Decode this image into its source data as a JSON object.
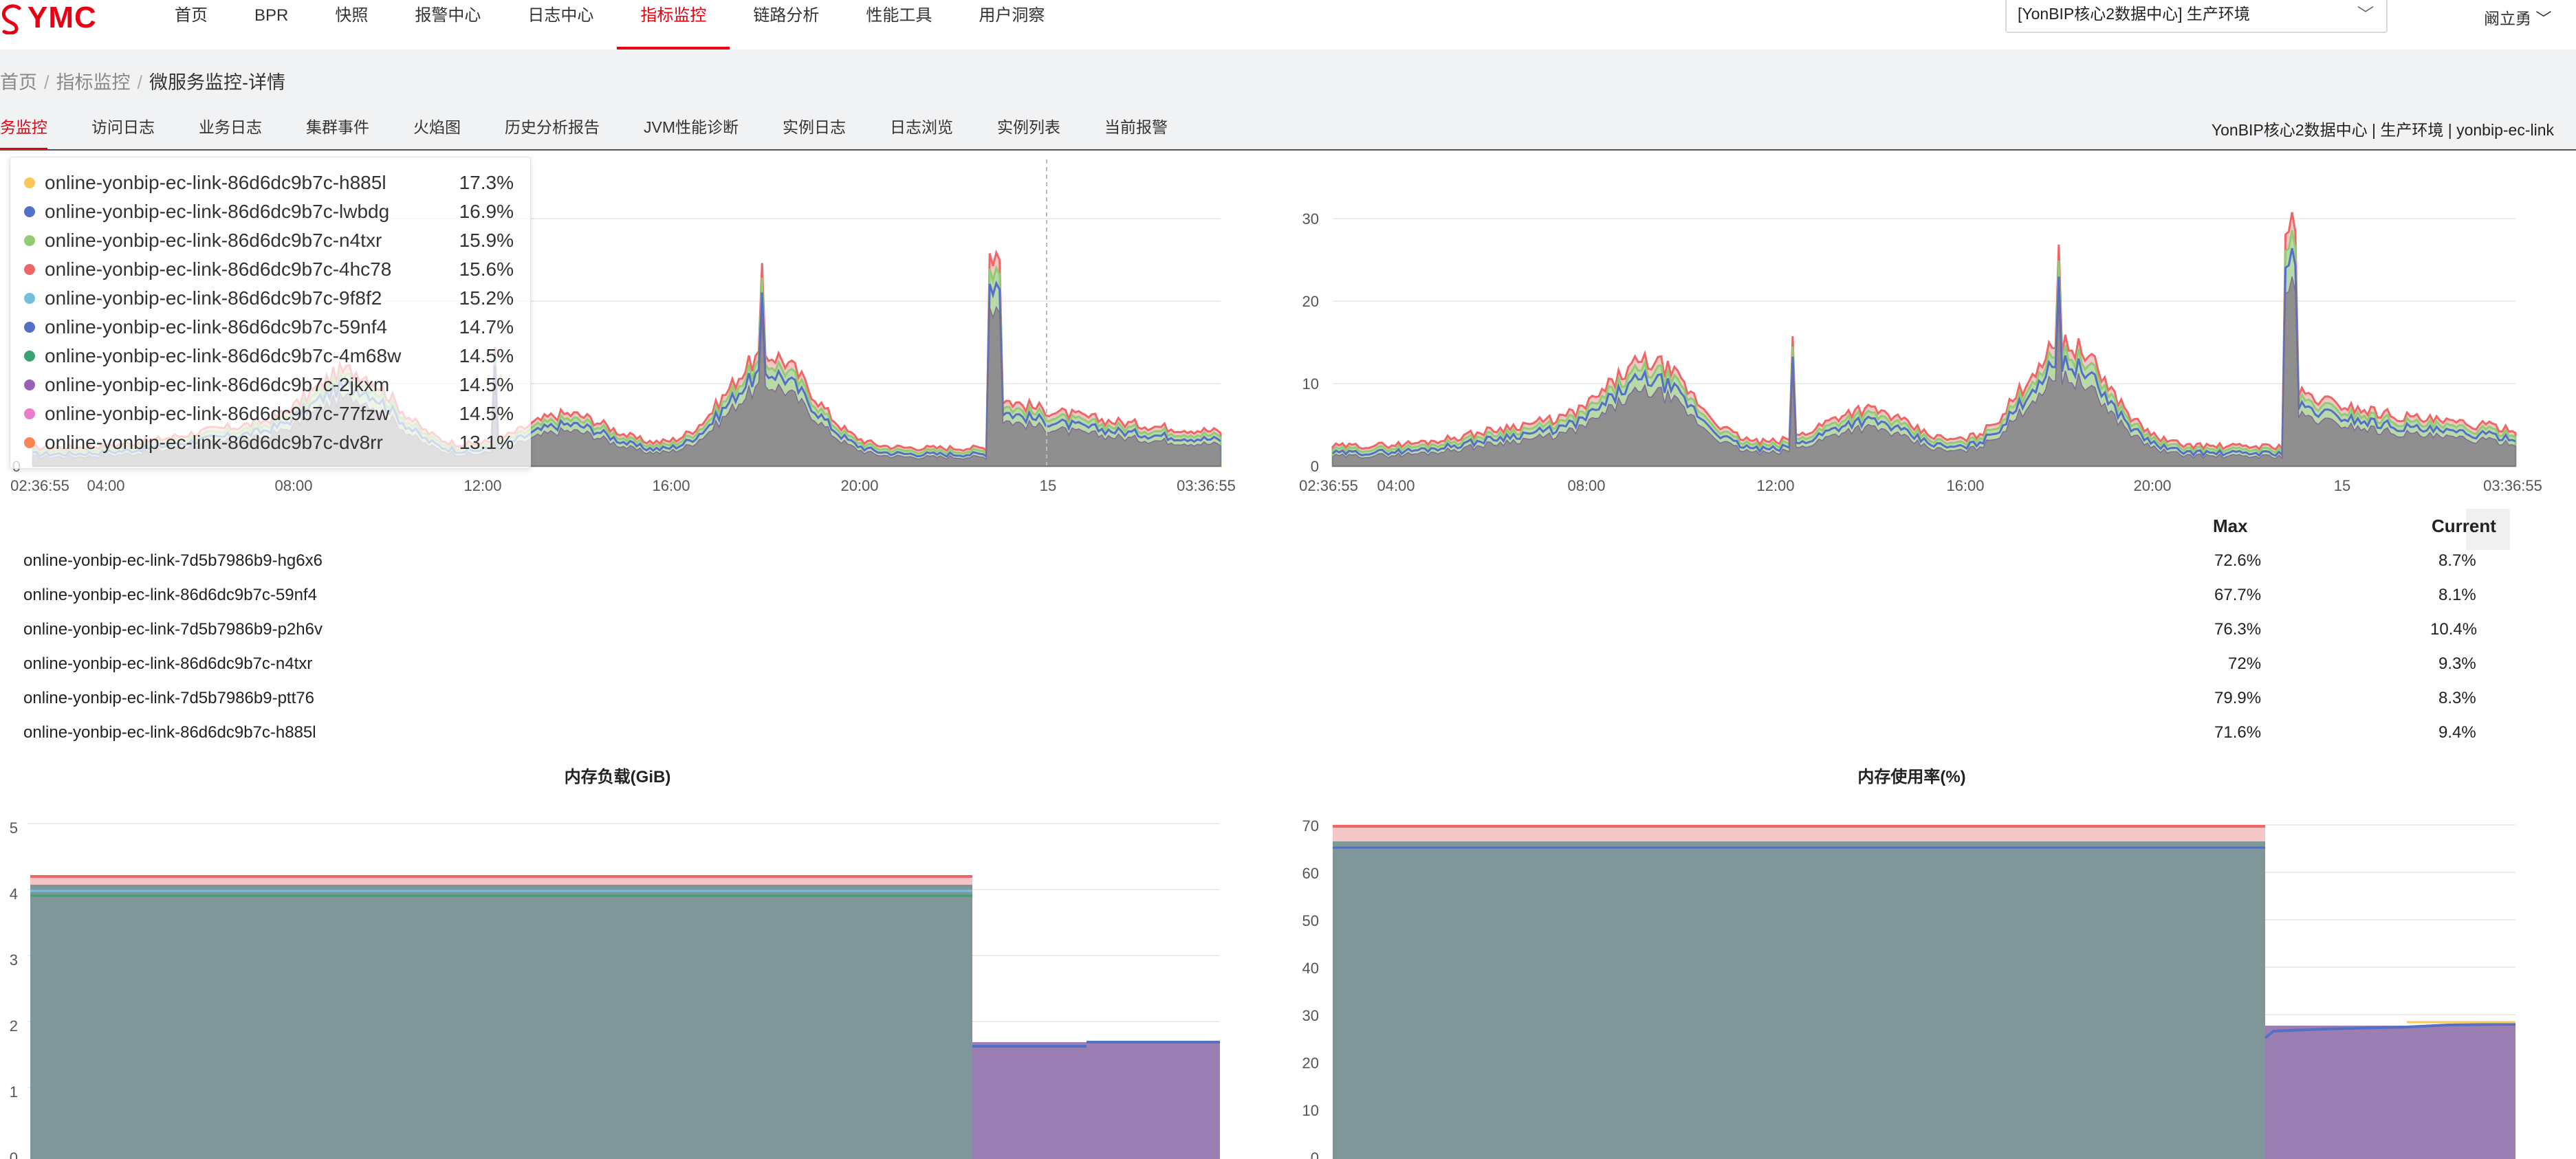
{
  "app": {
    "logo": "YMC",
    "nav": [
      "首页",
      "BPR",
      "快照",
      "报警中心",
      "日志中心",
      "指标监控",
      "链路分析",
      "性能工具",
      "用户洞察"
    ],
    "active_nav": "指标监控",
    "env_select": "[YonBIP核心2数据中心] 生产环境",
    "user": "阚立勇"
  },
  "breadcrumb": [
    "首页",
    "指标监控",
    "微服务监控-详情"
  ],
  "subtabs": [
    "务监控",
    "访问日志",
    "业务日志",
    "集群事件",
    "火焰图",
    "历史分析报告",
    "JVM性能诊断",
    "实例日志",
    "日志浏览",
    "实例列表",
    "当前报警"
  ],
  "env_info": "YonBIP核心2数据中心 | 生产环境 | yonbip-ec-link",
  "colors": {
    "brand": "#e60012",
    "area_gray": "#8f8f8f",
    "area_purple": "#9b7fb3",
    "mem_teal": "#80979a",
    "series": [
      "#fac858",
      "#5470c6",
      "#91cc75",
      "#ee6666",
      "#73c0de",
      "#3ba272",
      "#9a60b4",
      "#ea7ccc",
      "#fc8452"
    ]
  },
  "tooltip": {
    "items": [
      {
        "name": "online-yonbip-ec-link-86d6dc9b7c-h885l",
        "value": "17.3%",
        "color": "#fac858"
      },
      {
        "name": "online-yonbip-ec-link-86d6dc9b7c-lwbdg",
        "value": "16.9%",
        "color": "#5470c6"
      },
      {
        "name": "online-yonbip-ec-link-86d6dc9b7c-n4txr",
        "value": "15.9%",
        "color": "#91cc75"
      },
      {
        "name": "online-yonbip-ec-link-86d6dc9b7c-4hc78",
        "value": "15.6%",
        "color": "#ee6666"
      },
      {
        "name": "online-yonbip-ec-link-86d6dc9b7c-9f8f2",
        "value": "15.2%",
        "color": "#73c0de"
      },
      {
        "name": "online-yonbip-ec-link-86d6dc9b7c-59nf4",
        "value": "14.7%",
        "color": "#5470c6"
      },
      {
        "name": "online-yonbip-ec-link-86d6dc9b7c-4m68w",
        "value": "14.5%",
        "color": "#3ba272"
      },
      {
        "name": "online-yonbip-ec-link-86d6dc9b7c-2jkxm",
        "value": "14.5%",
        "color": "#9a60b4"
      },
      {
        "name": "online-yonbip-ec-link-86d6dc9b7c-77fzw",
        "value": "14.5%",
        "color": "#ea7ccc"
      },
      {
        "name": "online-yonbip-ec-link-86d6dc9b7c-dv8rr",
        "value": "13.1%",
        "color": "#fc8452"
      }
    ]
  },
  "cpu_chart_1": {
    "x_ticks": [
      "02:36:55",
      "04:00",
      "08:00",
      "12:00",
      "16:00",
      "20:00",
      "15",
      "03:36:55"
    ],
    "y_ticks": [
      "0"
    ]
  },
  "cpu_chart_2": {
    "x_ticks": [
      "02:36:55",
      "04:00",
      "08:00",
      "12:00",
      "16:00",
      "20:00",
      "15",
      "03:36:55"
    ],
    "y_ticks": [
      "0",
      "10",
      "20",
      "30"
    ]
  },
  "table": {
    "headers": {
      "max": "Max",
      "current": "Current"
    },
    "rows": [
      {
        "name": "online-yonbip-ec-link-7d5b7986b9-hg6x6",
        "max": "72.6%",
        "current": "8.7%"
      },
      {
        "name": "online-yonbip-ec-link-86d6dc9b7c-59nf4",
        "max": "67.7%",
        "current": "8.1%"
      },
      {
        "name": "online-yonbip-ec-link-7d5b7986b9-p2h6v",
        "max": "76.3%",
        "current": "10.4%"
      },
      {
        "name": "online-yonbip-ec-link-86d6dc9b7c-n4txr",
        "max": "72%",
        "current": "9.3%"
      },
      {
        "name": "online-yonbip-ec-link-7d5b7986b9-ptt76",
        "max": "79.9%",
        "current": "8.3%"
      },
      {
        "name": "online-yonbip-ec-link-86d6dc9b7c-h885l",
        "max": "71.6%",
        "current": "9.4%"
      }
    ]
  },
  "mem_load": {
    "title": "内存负载(GiB)",
    "y_ticks": [
      "0",
      "1",
      "2",
      "3",
      "4",
      "5"
    ]
  },
  "mem_usage": {
    "title": "内存使用率(%)",
    "y_ticks": [
      "0",
      "10",
      "20",
      "30",
      "40",
      "50",
      "60",
      "70"
    ]
  }
}
